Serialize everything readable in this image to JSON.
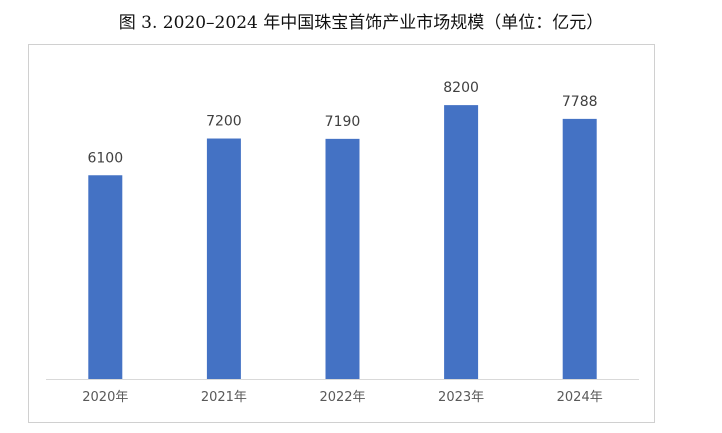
{
  "caption": "图 3. 2020–2024 年中国珠宝首饰产业市场规模（单位：亿元）",
  "chart_data": {
    "type": "bar",
    "title": "",
    "categories": [
      "2020年",
      "2021年",
      "2022年",
      "2023年",
      "2024年"
    ],
    "values": [
      6100,
      7200,
      7190,
      8200,
      7788
    ],
    "xlabel": "",
    "ylabel": "",
    "ylim": [
      0,
      10000
    ],
    "grid": false,
    "legend": "none",
    "bar_color": "#4472c4"
  }
}
